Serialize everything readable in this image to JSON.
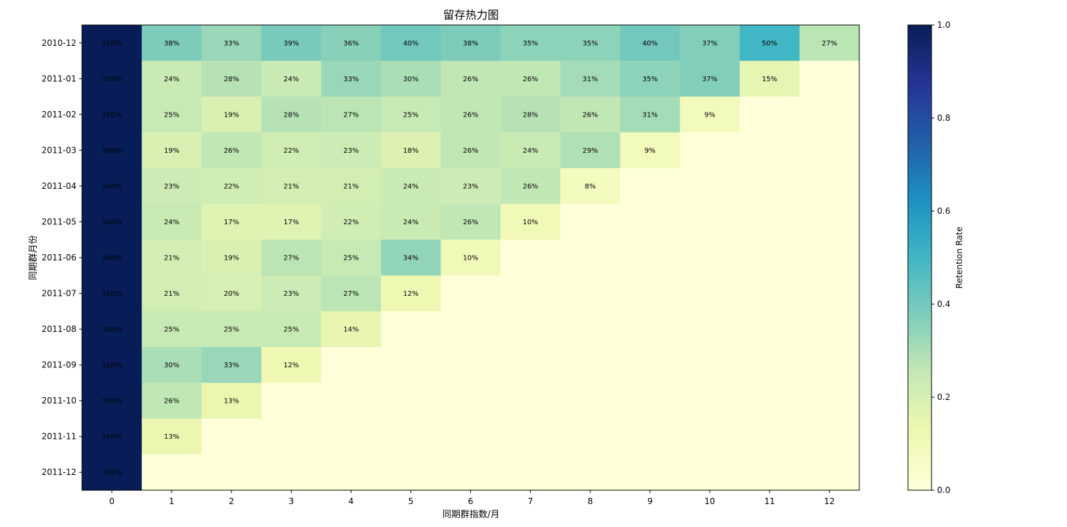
{
  "chart_data": {
    "type": "heatmap",
    "title": "留存热力图",
    "xlabel": "同期群指数/月",
    "ylabel": "同期群月份",
    "x_categories": [
      "0",
      "1",
      "2",
      "3",
      "4",
      "5",
      "6",
      "7",
      "8",
      "9",
      "10",
      "11",
      "12"
    ],
    "y_categories": [
      "2010-12",
      "2011-01",
      "2011-02",
      "2011-03",
      "2011-04",
      "2011-05",
      "2011-06",
      "2011-07",
      "2011-08",
      "2011-09",
      "2011-10",
      "2011-11",
      "2011-12"
    ],
    "values": [
      [
        1.0,
        0.38,
        0.33,
        0.39,
        0.36,
        0.4,
        0.38,
        0.35,
        0.35,
        0.4,
        0.37,
        0.5,
        0.27
      ],
      [
        1.0,
        0.24,
        0.28,
        0.24,
        0.33,
        0.3,
        0.26,
        0.26,
        0.31,
        0.35,
        0.37,
        0.15,
        null
      ],
      [
        1.0,
        0.25,
        0.19,
        0.28,
        0.27,
        0.25,
        0.26,
        0.28,
        0.26,
        0.31,
        0.09,
        null,
        null
      ],
      [
        1.0,
        0.19,
        0.26,
        0.22,
        0.23,
        0.18,
        0.26,
        0.24,
        0.29,
        0.09,
        null,
        null,
        null
      ],
      [
        1.0,
        0.23,
        0.22,
        0.21,
        0.21,
        0.24,
        0.23,
        0.26,
        0.08,
        null,
        null,
        null,
        null
      ],
      [
        1.0,
        0.24,
        0.17,
        0.17,
        0.22,
        0.24,
        0.26,
        0.1,
        null,
        null,
        null,
        null,
        null
      ],
      [
        1.0,
        0.21,
        0.19,
        0.27,
        0.25,
        0.34,
        0.1,
        null,
        null,
        null,
        null,
        null,
        null
      ],
      [
        1.0,
        0.21,
        0.2,
        0.23,
        0.27,
        0.12,
        null,
        null,
        null,
        null,
        null,
        null,
        null
      ],
      [
        1.0,
        0.25,
        0.25,
        0.25,
        0.14,
        null,
        null,
        null,
        null,
        null,
        null,
        null,
        null
      ],
      [
        1.0,
        0.3,
        0.33,
        0.12,
        null,
        null,
        null,
        null,
        null,
        null,
        null,
        null,
        null
      ],
      [
        1.0,
        0.26,
        0.13,
        null,
        null,
        null,
        null,
        null,
        null,
        null,
        null,
        null,
        null
      ],
      [
        1.0,
        0.13,
        null,
        null,
        null,
        null,
        null,
        null,
        null,
        null,
        null,
        null,
        null
      ],
      [
        1.0,
        null,
        null,
        null,
        null,
        null,
        null,
        null,
        null,
        null,
        null,
        null,
        null
      ]
    ],
    "value_format": "percent",
    "colormap": "YlGnBu",
    "colormap_stops": [
      "#ffffd9",
      "#edf8b1",
      "#c7e9b4",
      "#7fcdbb",
      "#41b6c4",
      "#1d91c0",
      "#225ea8",
      "#253494",
      "#081d58"
    ],
    "empty_cell_color": "#ffffd9",
    "colorbar": {
      "label": "Retention Rate",
      "range": [
        0,
        1
      ],
      "ticks": [
        0.0,
        0.2,
        0.4,
        0.6,
        0.8,
        1.0
      ],
      "tick_labels": [
        "0.0",
        "0.2",
        "0.4",
        "0.6",
        "0.8",
        "1.0"
      ]
    },
    "grid": false,
    "legend": "colorbar-right"
  }
}
